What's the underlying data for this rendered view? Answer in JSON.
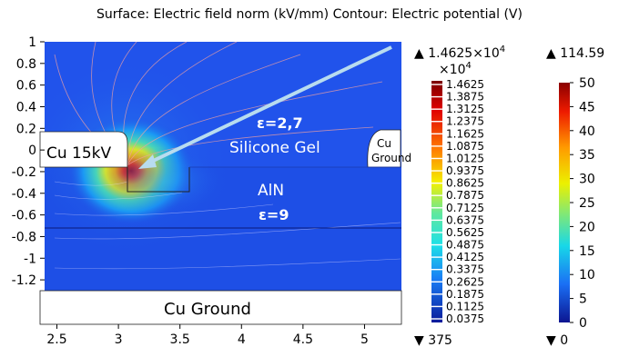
{
  "title": "Surface: Electric field norm (kV/mm)  Contour: Electric potential (V)",
  "chart_data": {
    "type": "heatmap",
    "x_ticks": [
      "2.5",
      "3",
      "3.5",
      "4",
      "4.5",
      "5"
    ],
    "y_ticks": [
      "1",
      "0.8",
      "0.6",
      "0.4",
      "0.2",
      "0",
      "-0.2",
      "-0.4",
      "-0.6",
      "-0.8",
      "-1",
      "-1.2"
    ],
    "xlim": [
      2.4,
      5.3
    ],
    "ylim": [
      -1.3,
      1.0
    ],
    "annotations": {
      "cu_15kv": "Cu 15kV",
      "eps_gel": "ε=2,7",
      "silicone_gel": "Silicone Gel",
      "cu_ground_top_line1": "Cu",
      "cu_ground_top_line2": "Ground",
      "aln": "AlN",
      "eps_aln": "ε=9",
      "cu_ground_bottom": "Cu Ground"
    },
    "colorbar_field": {
      "max_label": "▲ 1.4625×10",
      "max_label_exp": "4",
      "multiplier": "×10",
      "multiplier_exp": "4",
      "ticks": [
        "1.4625",
        "1.3875",
        "1.3125",
        "1.2375",
        "1.1625",
        "1.0875",
        "1.0125",
        "0.9375",
        "0.8625",
        "0.7875",
        "0.7125",
        "0.6375",
        "0.5625",
        "0.4875",
        "0.4125",
        "0.3375",
        "0.2625",
        "0.1875",
        "0.1125",
        "0.0375"
      ],
      "min_label": "▼ 375"
    },
    "colorbar_potential": {
      "max_label": "▲ 114.59",
      "ticks": [
        "50",
        "45",
        "40",
        "35",
        "30",
        "25",
        "20",
        "15",
        "10",
        "5",
        "0"
      ],
      "min_label": "▼ 0"
    }
  },
  "colors": {
    "field_background": "#1e4fe6",
    "arrow": "#b8dcef"
  }
}
